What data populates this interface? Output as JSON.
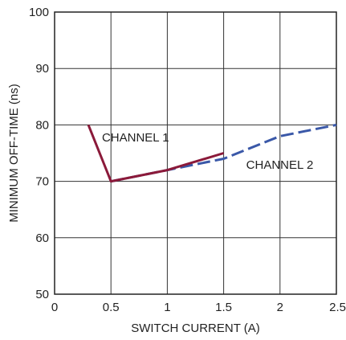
{
  "chart_data": {
    "type": "line",
    "title": "",
    "xlabel": "SWITCH CURRENT (A)",
    "ylabel": "MINIMUM OFF-TIME (ns)",
    "xlim": [
      0,
      2.5
    ],
    "ylim": [
      50,
      100
    ],
    "x_ticks": [
      "0",
      "0.5",
      "1",
      "1.5",
      "2",
      "2.5"
    ],
    "y_ticks": [
      "50",
      "60",
      "70",
      "80",
      "90",
      "100"
    ],
    "grid": true,
    "legend": "none",
    "series": [
      {
        "name": "CHANNEL 1",
        "color": "#8b1a3a",
        "style": "solid",
        "points": [
          {
            "x": 0.3,
            "y": 80
          },
          {
            "x": 0.5,
            "y": 70
          },
          {
            "x": 1.0,
            "y": 72
          },
          {
            "x": 1.5,
            "y": 75
          }
        ]
      },
      {
        "name": "CHANNEL 2",
        "color": "#3a58a8",
        "style": "dashed",
        "points": [
          {
            "x": 0.5,
            "y": 70
          },
          {
            "x": 1.0,
            "y": 72
          },
          {
            "x": 1.5,
            "y": 74
          },
          {
            "x": 2.0,
            "y": 78
          },
          {
            "x": 2.5,
            "y": 80
          }
        ]
      }
    ]
  }
}
